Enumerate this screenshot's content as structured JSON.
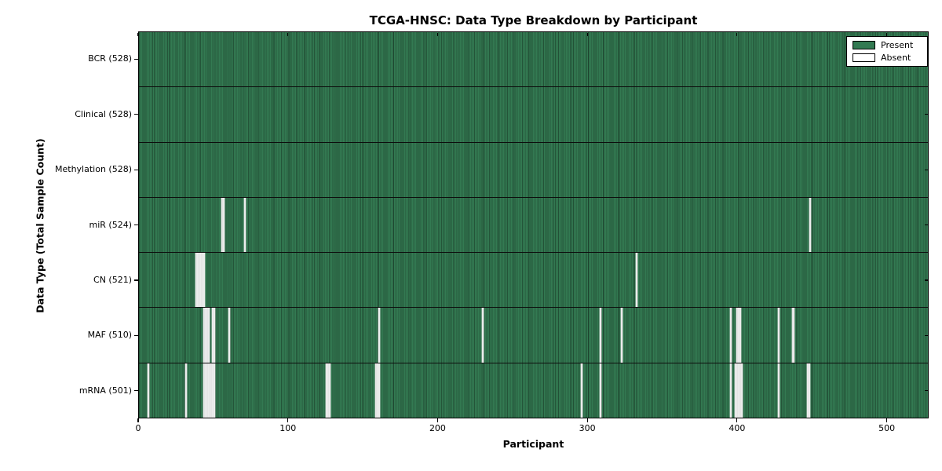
{
  "title": "TCGA-HNSC: Data Type Breakdown by Participant",
  "chart_data": {
    "type": "heatmap",
    "title": "TCGA-HNSC: Data Type Breakdown by Participant",
    "xlabel": "Participant",
    "ylabel": "Data Type (Total Sample Count)",
    "n_participants": 528,
    "x_ticks": [
      0,
      100,
      200,
      300,
      400,
      500
    ],
    "xlim": [
      0,
      528
    ],
    "grid": false,
    "cell_states": [
      "Present",
      "Absent"
    ],
    "present_color": "#337a52",
    "absent_color": "#ececec",
    "legend": {
      "position": "upper right",
      "items": [
        {
          "label": "Present",
          "color": "#337a52"
        },
        {
          "label": "Absent",
          "color": "#ffffff"
        }
      ]
    },
    "rows": [
      {
        "name": "BCR",
        "total": 528,
        "tick_label": "BCR (528)",
        "absent_participants": []
      },
      {
        "name": "Clinical",
        "total": 528,
        "tick_label": "Clinical (528)",
        "absent_participants": []
      },
      {
        "name": "Methylation",
        "total": 528,
        "tick_label": "Methylation (528)",
        "absent_participants": []
      },
      {
        "name": "miR",
        "total": 524,
        "tick_label": "miR (524)",
        "absent_participants": [
          55,
          56,
          70,
          448
        ]
      },
      {
        "name": "CN",
        "total": 521,
        "tick_label": "CN (521)",
        "absent_participants": [
          38,
          39,
          40,
          41,
          42,
          43,
          332
        ]
      },
      {
        "name": "MAF",
        "total": 510,
        "tick_label": "MAF (510)",
        "absent_participants": [
          43,
          44,
          45,
          46,
          49,
          50,
          60,
          160,
          229,
          308,
          322,
          395,
          399,
          400,
          401,
          427,
          436,
          437
        ]
      },
      {
        "name": "mRNA",
        "total": 501,
        "tick_label": "mRNA (501)",
        "absent_participants": [
          6,
          31,
          43,
          44,
          45,
          46,
          47,
          48,
          49,
          50,
          125,
          126,
          127,
          158,
          159,
          160,
          295,
          308,
          395,
          398,
          399,
          400,
          401,
          402,
          427,
          446,
          447
        ]
      }
    ]
  }
}
